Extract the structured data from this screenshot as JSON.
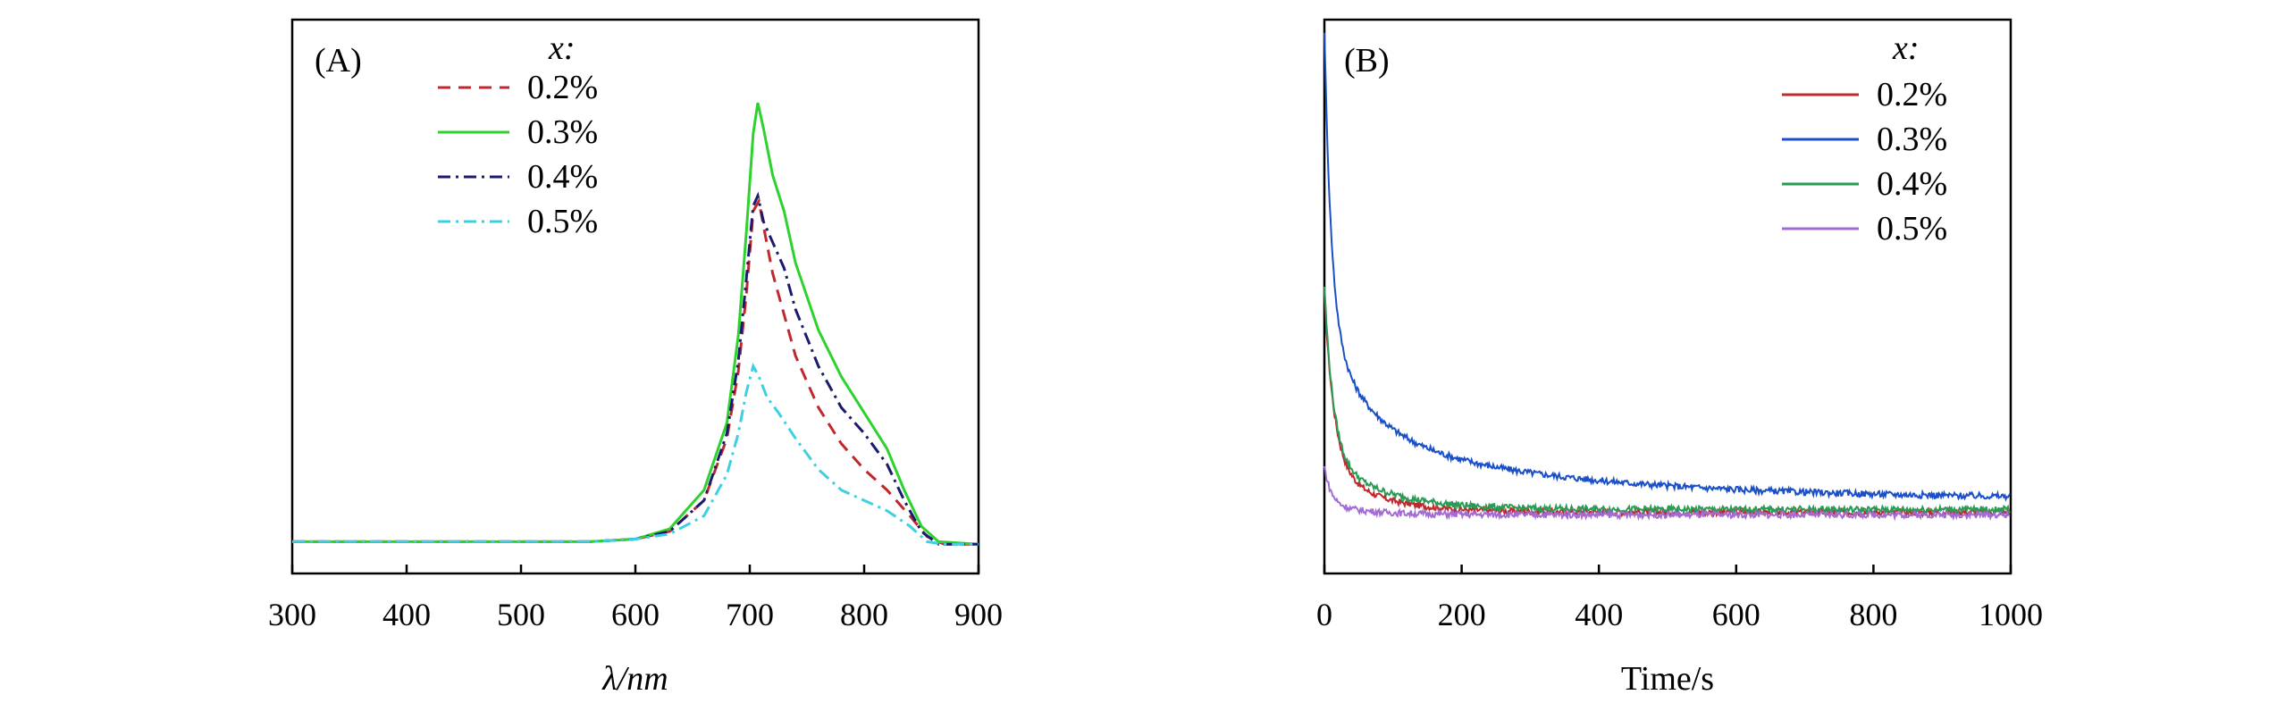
{
  "chart_data": [
    {
      "panel": "(A)",
      "type": "line",
      "xlabel": "λ/nm",
      "ylabel": "",
      "xlim": [
        300,
        900
      ],
      "ylim": [
        0,
        1.0
      ],
      "xticks": [
        "300",
        "400",
        "500",
        "600",
        "700",
        "800",
        "900"
      ],
      "legend_title": "x:",
      "series": [
        {
          "name": "0.2%",
          "color": "#c0282d",
          "style": "dashed",
          "points": [
            [
              300,
              0.02
            ],
            [
              560,
              0.02
            ],
            [
              600,
              0.025
            ],
            [
              630,
              0.04
            ],
            [
              660,
              0.1
            ],
            [
              680,
              0.22
            ],
            [
              690,
              0.35
            ],
            [
              697,
              0.5
            ],
            [
              703,
              0.66
            ],
            [
              708,
              0.68
            ],
            [
              713,
              0.62
            ],
            [
              720,
              0.54
            ],
            [
              730,
              0.46
            ],
            [
              740,
              0.38
            ],
            [
              760,
              0.28
            ],
            [
              780,
              0.21
            ],
            [
              800,
              0.16
            ],
            [
              820,
              0.12
            ],
            [
              840,
              0.07
            ],
            [
              855,
              0.03
            ],
            [
              870,
              0.015
            ],
            [
              900,
              0.015
            ]
          ]
        },
        {
          "name": "0.3%",
          "color": "#2ed22e",
          "style": "solid",
          "points": [
            [
              300,
              0.02
            ],
            [
              560,
              0.02
            ],
            [
              600,
              0.025
            ],
            [
              630,
              0.045
            ],
            [
              660,
              0.12
            ],
            [
              680,
              0.25
            ],
            [
              690,
              0.42
            ],
            [
              697,
              0.62
            ],
            [
              703,
              0.81
            ],
            [
              707,
              0.87
            ],
            [
              712,
              0.82
            ],
            [
              720,
              0.73
            ],
            [
              730,
              0.66
            ],
            [
              740,
              0.56
            ],
            [
              760,
              0.43
            ],
            [
              780,
              0.34
            ],
            [
              800,
              0.27
            ],
            [
              820,
              0.2
            ],
            [
              835,
              0.12
            ],
            [
              850,
              0.05
            ],
            [
              865,
              0.02
            ],
            [
              900,
              0.015
            ]
          ]
        },
        {
          "name": "0.4%",
          "color": "#1a1a6e",
          "style": "dashdot",
          "points": [
            [
              300,
              0.02
            ],
            [
              560,
              0.02
            ],
            [
              600,
              0.025
            ],
            [
              630,
              0.04
            ],
            [
              660,
              0.1
            ],
            [
              680,
              0.23
            ],
            [
              690,
              0.37
            ],
            [
              697,
              0.53
            ],
            [
              703,
              0.67
            ],
            [
              707,
              0.69
            ],
            [
              712,
              0.64
            ],
            [
              720,
              0.6
            ],
            [
              730,
              0.55
            ],
            [
              740,
              0.47
            ],
            [
              760,
              0.36
            ],
            [
              780,
              0.28
            ],
            [
              800,
              0.23
            ],
            [
              820,
              0.17
            ],
            [
              835,
              0.1
            ],
            [
              850,
              0.04
            ],
            [
              865,
              0.015
            ],
            [
              900,
              0.015
            ]
          ]
        },
        {
          "name": "0.5%",
          "color": "#3ed0e0",
          "style": "dashdot",
          "points": [
            [
              300,
              0.02
            ],
            [
              560,
              0.02
            ],
            [
              600,
              0.025
            ],
            [
              630,
              0.035
            ],
            [
              660,
              0.07
            ],
            [
              680,
              0.15
            ],
            [
              690,
              0.23
            ],
            [
              697,
              0.31
            ],
            [
              703,
              0.36
            ],
            [
              708,
              0.34
            ],
            [
              715,
              0.3
            ],
            [
              725,
              0.27
            ],
            [
              740,
              0.22
            ],
            [
              760,
              0.16
            ],
            [
              780,
              0.12
            ],
            [
              800,
              0.1
            ],
            [
              820,
              0.08
            ],
            [
              840,
              0.05
            ],
            [
              855,
              0.02
            ],
            [
              870,
              0.015
            ],
            [
              900,
              0.015
            ]
          ]
        }
      ]
    },
    {
      "panel": "(B)",
      "type": "line",
      "xlabel": "Time/s",
      "ylabel": "",
      "xlim": [
        0,
        1000
      ],
      "ylim": [
        0,
        1.0
      ],
      "xticks": [
        "0",
        "200",
        "400",
        "600",
        "800",
        "1000"
      ],
      "legend_title": "x:",
      "series": [
        {
          "name": "0.2%",
          "color": "#c0282d",
          "style": "solid",
          "decay": {
            "base": 0.075,
            "amps": [
              0.32,
              0.09
            ],
            "taus": [
              14,
              70
            ]
          }
        },
        {
          "name": "0.3%",
          "color": "#1a4fc8",
          "style": "solid",
          "decay": {
            "base": 0.1,
            "amps": [
              0.55,
              0.2,
              0.13
            ],
            "taus": [
              10,
              60,
              300
            ]
          }
        },
        {
          "name": "0.4%",
          "color": "#2a9b55",
          "style": "solid",
          "decay": {
            "base": 0.08,
            "amps": [
              0.32,
              0.1
            ],
            "taus": [
              13,
              80
            ]
          }
        },
        {
          "name": "0.5%",
          "color": "#a36bd3",
          "style": "solid",
          "decay": {
            "base": 0.07,
            "amps": [
              0.07,
              0.02
            ],
            "taus": [
              10,
              60
            ]
          }
        }
      ]
    }
  ]
}
